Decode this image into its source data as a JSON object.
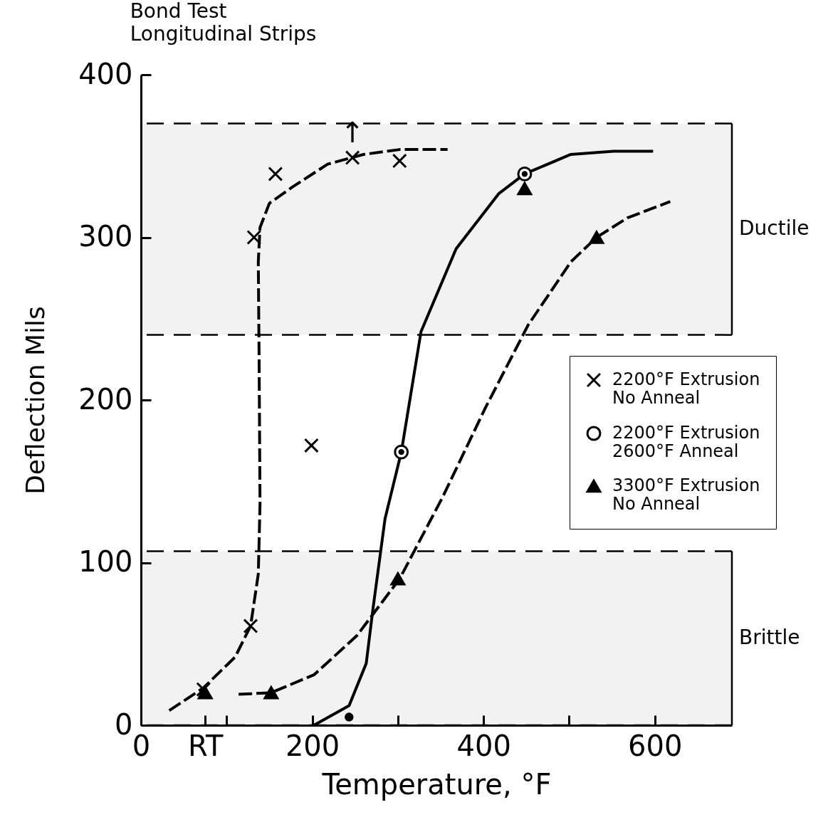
{
  "chart_data": {
    "type": "scatter",
    "title": "Bond Test",
    "subtitle": "Longitudinal Strips",
    "xlabel": "Temperature, °F",
    "ylabel": "Deflection Mils",
    "xlim": [
      0,
      690
    ],
    "ylim": [
      0,
      400
    ],
    "xticks": [
      0,
      {
        "value": 75,
        "label": "RT"
      },
      {
        "value": 100,
        "label": null
      },
      200,
      {
        "value": 300,
        "label": null
      },
      400,
      {
        "value": 500,
        "label": null
      },
      600
    ],
    "yticks": [
      0,
      100,
      200,
      300,
      400
    ],
    "grid": false,
    "legend": "right",
    "series": [
      {
        "type": "line",
        "line_style": "dashed",
        "color": "#000000",
        "x": [
          33,
          73,
          110,
          128,
          137,
          139,
          138,
          137,
          139,
          150,
          177,
          218,
          260,
          302,
          358
        ],
        "values": [
          9,
          23,
          42,
          61,
          93,
          136,
          221,
          285,
          306,
          321,
          331,
          345,
          351,
          354,
          354
        ]
      },
      {
        "type": "line",
        "line_style": "solid",
        "color": "#000000",
        "x": [
          202,
          243,
          263,
          271,
          285,
          304,
          327,
          368,
          418,
          448,
          502,
          552,
          598
        ],
        "values": [
          0,
          12,
          38,
          72,
          127,
          168,
          242,
          293,
          327,
          339,
          351,
          353,
          353
        ]
      },
      {
        "type": "line",
        "line_style": "dashed",
        "color": "#000000",
        "x": [
          114,
          152,
          202,
          252,
          302,
          352,
          402,
          452,
          502,
          532,
          568,
          618
        ],
        "values": [
          19,
          20,
          31,
          55,
          90,
          140,
          195,
          246,
          285,
          300,
          312,
          322
        ]
      },
      {
        "name": "2200°F Extrusion No Anneal",
        "marker": "cross",
        "color": "#000000",
        "x": [
          73,
          128,
          199,
          132,
          157,
          247,
          302
        ],
        "values": [
          22,
          61,
          172,
          300,
          339,
          349,
          347
        ]
      },
      {
        "name": "2200°F Extrusion 2600°F Anneal",
        "marker": "circle",
        "color": "#000000",
        "x": [
          304,
          448
        ],
        "values": [
          168,
          339
        ]
      },
      {
        "name": "3300°F Extrusion No Anneal",
        "marker": "triangle",
        "color": "#000000",
        "x": [
          75,
          152,
          300,
          448,
          532
        ],
        "values": [
          20,
          20,
          90,
          330,
          300
        ]
      },
      {
        "marker": "circle",
        "color": "#000000",
        "x": [
          243
        ],
        "values": [
          5
        ]
      }
    ],
    "bands": [
      {
        "axis": "y",
        "from": 240,
        "to": 370,
        "label": "Ductile"
      },
      {
        "axis": "y",
        "from": 0,
        "to": 107,
        "label": "Brittle"
      }
    ],
    "annotations": [
      {
        "text": "↑",
        "x": 247,
        "y": 349
      }
    ]
  }
}
